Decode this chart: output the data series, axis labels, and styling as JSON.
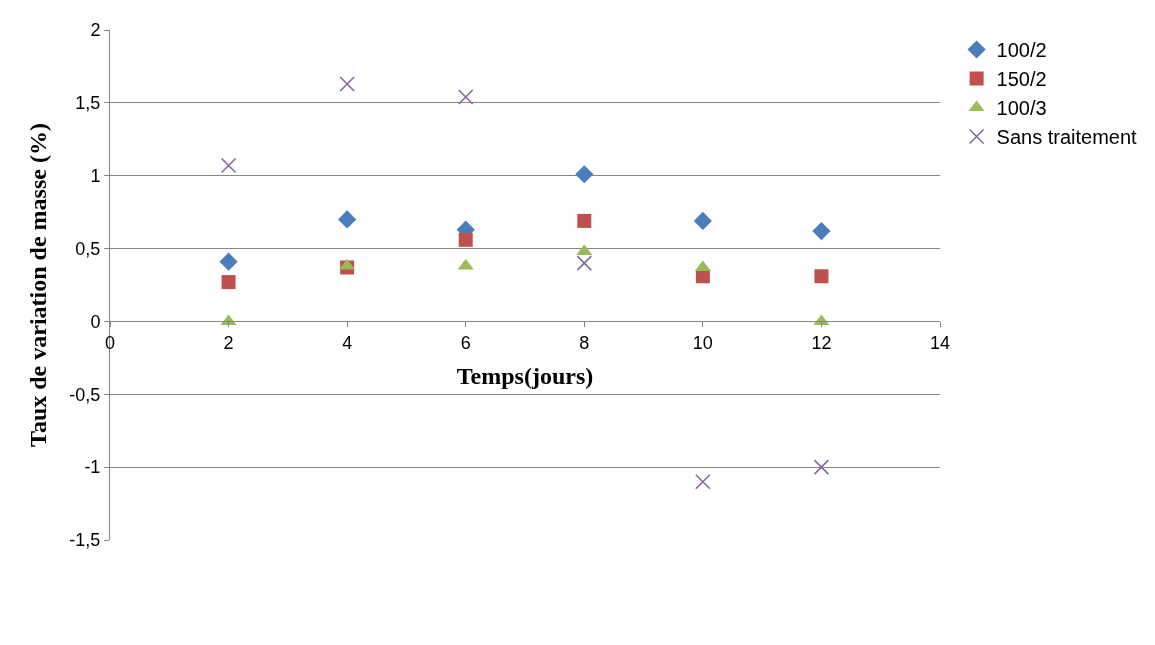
{
  "chart_data": {
    "type": "scatter",
    "xlabel": "Temps(jours)",
    "ylabel": "Taux de variation de masse (%)",
    "x": [
      2,
      4,
      6,
      8,
      10,
      12
    ],
    "series": [
      {
        "name": "100/2",
        "color": "#4a7ebb",
        "marker": "diamond",
        "values": [
          0.41,
          0.7,
          0.63,
          1.01,
          0.69,
          0.62
        ]
      },
      {
        "name": "150/2",
        "color": "#c0504d",
        "marker": "square",
        "values": [
          0.27,
          0.37,
          0.56,
          0.69,
          0.31,
          0.31
        ]
      },
      {
        "name": "100/3",
        "color": "#9bbb59",
        "marker": "triangle",
        "values": [
          0,
          0.38,
          0.38,
          0.48,
          0.37,
          0
        ]
      },
      {
        "name": "Sans traitement",
        "color": "#8064a2",
        "marker": "cross",
        "values": [
          1.07,
          1.63,
          1.54,
          0.4,
          -1.1,
          -1.0
        ]
      }
    ],
    "xlim": [
      0,
      14
    ],
    "xticks": [
      0,
      2,
      4,
      6,
      8,
      10,
      12,
      14
    ],
    "ylim": [
      -1.5,
      2
    ],
    "yticks": [
      {
        "value": -1.5,
        "label": "-1,5"
      },
      {
        "value": -1,
        "label": "-1"
      },
      {
        "value": -0.5,
        "label": "-0,5"
      },
      0,
      {
        "value": 0.5,
        "label": "0,5"
      },
      1,
      {
        "value": 1.5,
        "label": "1,5"
      },
      2
    ],
    "grid": "y",
    "legend": "right"
  }
}
